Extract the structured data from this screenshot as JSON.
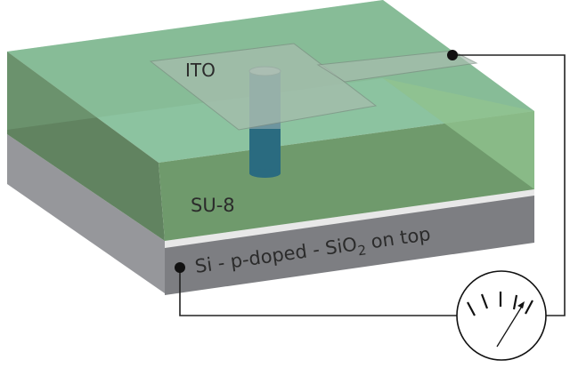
{
  "labels": {
    "ito": "ITO",
    "su8": "SU-8",
    "substrate_prefix": "Si - p-doped - SiO",
    "substrate_subscript": "2",
    "substrate_suffix": " on top"
  },
  "colors": {
    "su8_top": "#8cc3a0",
    "su8_front": "#6f9a6c",
    "su8_left": "#587c57",
    "su8_right": "#93c48e",
    "ito": "#9fb5a6",
    "pillar": "#2a6b80",
    "substrate_front": "#7d7e82",
    "substrate_left": "#96979b",
    "oxide": "#e8e8e8",
    "wire": "#222222"
  },
  "icons": {
    "meter": "ammeter-gauge-icon",
    "contact": "contact-dot-icon"
  }
}
